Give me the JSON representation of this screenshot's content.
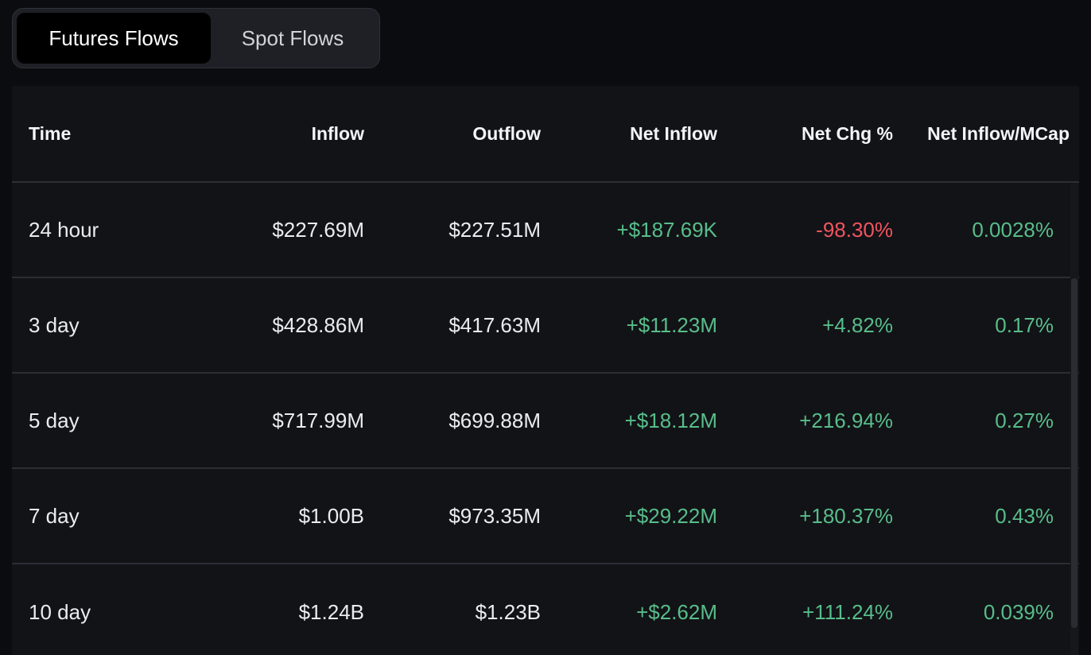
{
  "tabs": [
    {
      "label": "Futures Flows",
      "active": true
    },
    {
      "label": "Spot Flows",
      "active": false
    }
  ],
  "columns": [
    "Time",
    "Inflow",
    "Outflow",
    "Net Inflow",
    "Net Chg %",
    "Net Inflow/MCap"
  ],
  "rows": [
    {
      "time": "24 hour",
      "inflow": "$227.69M",
      "outflow": "$227.51M",
      "net_inflow": "+$187.69K",
      "net_chg": "-98.30%",
      "net_mcap": "0.0028%"
    },
    {
      "time": "3 day",
      "inflow": "$428.86M",
      "outflow": "$417.63M",
      "net_inflow": "+$11.23M",
      "net_chg": "+4.82%",
      "net_mcap": "0.17%"
    },
    {
      "time": "5 day",
      "inflow": "$717.99M",
      "outflow": "$699.88M",
      "net_inflow": "+$18.12M",
      "net_chg": "+216.94%",
      "net_mcap": "0.27%"
    },
    {
      "time": "7 day",
      "inflow": "$1.00B",
      "outflow": "$973.35M",
      "net_inflow": "+$29.22M",
      "net_chg": "+180.37%",
      "net_mcap": "0.43%"
    },
    {
      "time": "10 day",
      "inflow": "$1.24B",
      "outflow": "$1.23B",
      "net_inflow": "+$2.62M",
      "net_chg": "+111.24%",
      "net_mcap": "0.039%"
    }
  ],
  "colors": {
    "positive": "#58bd8a",
    "negative": "#f0545e",
    "background": "#0b0c10",
    "table_bg": "#121317"
  }
}
